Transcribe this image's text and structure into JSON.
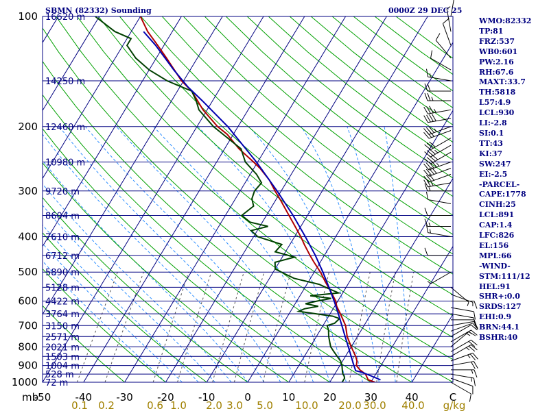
{
  "header": {
    "title": "SBMN (82332) Sounding",
    "datetime": "0000Z 29 DEC 25"
  },
  "indices": [
    "WMO:82332",
    "TP:81",
    "FRZ:537",
    "WB0:601",
    "PW:2.16",
    "RH:67.6",
    "MAXT:33.7",
    "TH:5818",
    "L57:4.9",
    "LCL:930",
    "LI:-2.8",
    "SI:0.1",
    "TT:43",
    "KI:37",
    "SW:247",
    "EI:-2.5",
    "-PARCEL-",
    "CAPE:1778",
    "CINH:25",
    "LCL:891",
    "CAP:1.4",
    "LFC:826",
    "EL:156",
    "MPL:66",
    "-WIND-",
    "STM:111/12",
    "HEL:91",
    "SHR+:0.0",
    "SRDS:127",
    "EHI:0.9",
    "BRN:44.1",
    "BSHR:40"
  ],
  "chart_data": {
    "type": "line",
    "title": "SBMN (82332) Sounding",
    "xlabel": "",
    "ylabel": "mb",
    "x_unit_label": "C",
    "mixing_ratio_unit": "g/kg",
    "xlim": [
      -50,
      50
    ],
    "ylim": [
      1000,
      100
    ],
    "y_scale": "log",
    "pressure_ticks": [
      "100",
      "200",
      "300",
      "400",
      "500",
      "600",
      "700",
      "800",
      "900",
      "1000"
    ],
    "temperature_ticks": [
      "-50",
      "-40",
      "-30",
      "-20",
      "-10",
      "0",
      "10",
      "20",
      "30",
      "40",
      "C"
    ],
    "mixing_ratio_ticks": [
      "0.1",
      "0.2",
      "0.6",
      "1.0",
      "2.0",
      "3.0",
      "5.0",
      "10.0",
      "20.0",
      "30.0",
      "40.0",
      "g/kg"
    ],
    "height_labels": [
      {
        "p": 100,
        "label": "16620 m"
      },
      {
        "p": 150,
        "label": "14250 m"
      },
      {
        "p": 200,
        "label": "12460 m"
      },
      {
        "p": 250,
        "label": "10980 m"
      },
      {
        "p": 300,
        "label": "9720 m"
      },
      {
        "p": 350,
        "label": "8604 m"
      },
      {
        "p": 400,
        "label": "7610 m"
      },
      {
        "p": 450,
        "label": "6712 m"
      },
      {
        "p": 500,
        "label": "5890 m"
      },
      {
        "p": 550,
        "label": "5128 m"
      },
      {
        "p": 600,
        "label": "4422 m"
      },
      {
        "p": 650,
        "label": "3764 m"
      },
      {
        "p": 700,
        "label": "3150 m"
      },
      {
        "p": 750,
        "label": "2571 m"
      },
      {
        "p": 800,
        "label": "2021 m"
      },
      {
        "p": 850,
        "label": "1503 m"
      },
      {
        "p": 900,
        "label": "1004 m"
      },
      {
        "p": 950,
        "label": "528 m"
      },
      {
        "p": 1000,
        "label": "72 m"
      }
    ],
    "series": [
      {
        "key": "temperature",
        "color": "#B00000",
        "points": [
          [
            1000,
            31
          ],
          [
            985,
            29
          ],
          [
            950,
            27.5
          ],
          [
            925,
            25.5
          ],
          [
            900,
            24
          ],
          [
            875,
            23.5
          ],
          [
            850,
            22.5
          ],
          [
            800,
            20
          ],
          [
            750,
            17.5
          ],
          [
            700,
            15.5
          ],
          [
            650,
            12.5
          ],
          [
            620,
            10.5
          ],
          [
            600,
            9.5
          ],
          [
            560,
            6.5
          ],
          [
            530,
            4
          ],
          [
            500,
            1.5
          ],
          [
            470,
            -1.5
          ],
          [
            450,
            -3.5
          ],
          [
            420,
            -6.5
          ],
          [
            400,
            -8.5
          ],
          [
            370,
            -12
          ],
          [
            350,
            -14.5
          ],
          [
            320,
            -18.5
          ],
          [
            300,
            -21.5
          ],
          [
            280,
            -24.5
          ],
          [
            260,
            -28.5
          ],
          [
            250,
            -31
          ],
          [
            230,
            -36.5
          ],
          [
            210,
            -41.5
          ],
          [
            200,
            -45
          ],
          [
            180,
            -51
          ],
          [
            160,
            -56.5
          ],
          [
            150,
            -60.5
          ],
          [
            130,
            -67.5
          ],
          [
            120,
            -71.5
          ],
          [
            110,
            -76
          ],
          [
            100,
            -80
          ]
        ]
      },
      {
        "key": "dewpoint",
        "color": "#004000",
        "points": [
          [
            1000,
            23
          ],
          [
            975,
            23
          ],
          [
            960,
            22.5
          ],
          [
            950,
            22
          ],
          [
            935,
            21.5
          ],
          [
            900,
            20.5
          ],
          [
            875,
            19.5
          ],
          [
            850,
            18
          ],
          [
            825,
            16.5
          ],
          [
            800,
            15
          ],
          [
            775,
            14
          ],
          [
            750,
            13
          ],
          [
            720,
            12
          ],
          [
            700,
            11
          ],
          [
            690,
            12.5
          ],
          [
            670,
            13
          ],
          [
            660,
            11
          ],
          [
            640,
            2
          ],
          [
            630,
            3
          ],
          [
            620,
            6
          ],
          [
            610,
            2.5
          ],
          [
            600,
            5
          ],
          [
            590,
            8
          ],
          [
            580,
            2.5
          ],
          [
            570,
            9
          ],
          [
            560,
            7
          ],
          [
            550,
            5
          ],
          [
            540,
            3
          ],
          [
            520,
            -4
          ],
          [
            505,
            -7
          ],
          [
            490,
            -10
          ],
          [
            470,
            -11
          ],
          [
            455,
            -7
          ],
          [
            440,
            -12.5
          ],
          [
            420,
            -12
          ],
          [
            400,
            -19
          ],
          [
            385,
            -21.5
          ],
          [
            375,
            -18
          ],
          [
            365,
            -23
          ],
          [
            350,
            -26
          ],
          [
            330,
            -24.5
          ],
          [
            315,
            -26
          ],
          [
            300,
            -26.5
          ],
          [
            285,
            -26
          ],
          [
            270,
            -28.5
          ],
          [
            250,
            -33
          ],
          [
            230,
            -36
          ],
          [
            210,
            -42.5
          ],
          [
            200,
            -46
          ],
          [
            180,
            -52
          ],
          [
            170,
            -54
          ],
          [
            160,
            -56.5
          ],
          [
            150,
            -64
          ],
          [
            140,
            -70
          ],
          [
            130,
            -75
          ],
          [
            120,
            -79
          ],
          [
            115,
            -79
          ],
          [
            110,
            -84
          ],
          [
            100,
            -91
          ]
        ]
      },
      {
        "key": "parcel",
        "color": "#0000B0",
        "points": [
          [
            985,
            32
          ],
          [
            960,
            29
          ],
          [
            940,
            26.5
          ],
          [
            930,
            24.6
          ],
          [
            900,
            23.4
          ],
          [
            850,
            21.4
          ],
          [
            800,
            19.3
          ],
          [
            750,
            17
          ],
          [
            700,
            14.6
          ],
          [
            650,
            12
          ],
          [
            600,
            9.1
          ],
          [
            550,
            5.8
          ],
          [
            500,
            2.1
          ],
          [
            450,
            -2.2
          ],
          [
            400,
            -7.4
          ],
          [
            350,
            -13.5
          ],
          [
            300,
            -21
          ],
          [
            250,
            -30.3
          ],
          [
            200,
            -42.5
          ],
          [
            170,
            -52.5
          ],
          [
            156,
            -58
          ],
          [
            140,
            -64
          ],
          [
            120,
            -72
          ],
          [
            110,
            -77
          ]
        ]
      }
    ],
    "wind_barbs": [
      {
        "p": 1000,
        "dir": 120,
        "spd": 10
      },
      {
        "p": 975,
        "dir": 110,
        "spd": 10
      },
      {
        "p": 950,
        "dir": 100,
        "spd": 15
      },
      {
        "p": 925,
        "dir": 90,
        "spd": 15
      },
      {
        "p": 900,
        "dir": 80,
        "spd": 20
      },
      {
        "p": 875,
        "dir": 70,
        "spd": 25
      },
      {
        "p": 850,
        "dir": 60,
        "spd": 25
      },
      {
        "p": 825,
        "dir": 60,
        "spd": 20
      },
      {
        "p": 800,
        "dir": 50,
        "spd": 15
      },
      {
        "p": 775,
        "dir": 60,
        "spd": 15
      },
      {
        "p": 750,
        "dir": 60,
        "spd": 10
      },
      {
        "p": 725,
        "dir": 70,
        "spd": 10
      },
      {
        "p": 700,
        "dir": 80,
        "spd": 10
      },
      {
        "p": 675,
        "dir": 90,
        "spd": 10
      },
      {
        "p": 650,
        "dir": 100,
        "spd": 10
      },
      {
        "p": 625,
        "dir": 100,
        "spd": 10
      },
      {
        "p": 600,
        "dir": 90,
        "spd": 10
      },
      {
        "p": 575,
        "dir": 110,
        "spd": 5
      },
      {
        "p": 550,
        "dir": 130,
        "spd": 5
      },
      {
        "p": 500,
        "dir": 240,
        "spd": 5
      },
      {
        "p": 450,
        "dir": 270,
        "spd": 10
      },
      {
        "p": 400,
        "dir": 280,
        "spd": 15
      },
      {
        "p": 375,
        "dir": 270,
        "spd": 15
      },
      {
        "p": 350,
        "dir": 270,
        "spd": 10
      },
      {
        "p": 325,
        "dir": 280,
        "spd": 10
      },
      {
        "p": 300,
        "dir": 270,
        "spd": 15
      },
      {
        "p": 285,
        "dir": 260,
        "spd": 25
      },
      {
        "p": 270,
        "dir": 250,
        "spd": 30
      },
      {
        "p": 260,
        "dir": 250,
        "spd": 40
      },
      {
        "p": 250,
        "dir": 250,
        "spd": 45
      },
      {
        "p": 235,
        "dir": 240,
        "spd": 40
      },
      {
        "p": 225,
        "dir": 240,
        "spd": 35
      },
      {
        "p": 215,
        "dir": 240,
        "spd": 30
      },
      {
        "p": 205,
        "dir": 250,
        "spd": 30
      },
      {
        "p": 200,
        "dir": 250,
        "spd": 35
      },
      {
        "p": 190,
        "dir": 260,
        "spd": 40
      },
      {
        "p": 180,
        "dir": 260,
        "spd": 35
      },
      {
        "p": 170,
        "dir": 270,
        "spd": 25
      },
      {
        "p": 160,
        "dir": 270,
        "spd": 20
      },
      {
        "p": 150,
        "dir": 280,
        "spd": 15
      },
      {
        "p": 140,
        "dir": 300,
        "spd": 10
      },
      {
        "p": 130,
        "dir": 320,
        "spd": 10
      },
      {
        "p": 120,
        "dir": 340,
        "spd": 10
      },
      {
        "p": 110,
        "dir": 350,
        "spd": 5
      },
      {
        "p": 100,
        "dir": 10,
        "spd": 10
      }
    ],
    "colors": {
      "frame": "#000080",
      "isotherm": "#000080",
      "dry_adiabat": "#00A000",
      "moist_adiabat": "#3090FF",
      "mixing_ratio": "#555555",
      "axis_text": "#000000",
      "mixing_text": "#A08000",
      "barb": "#000000"
    }
  }
}
